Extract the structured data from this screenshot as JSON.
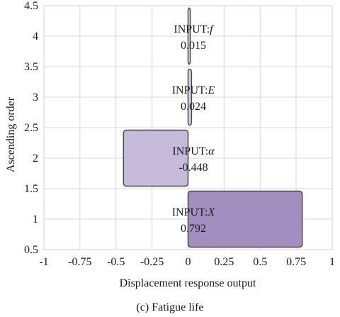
{
  "chart_data": {
    "type": "bar",
    "orientation": "horizontal",
    "xlabel": "Displacement response output",
    "ylabel": "Ascending order",
    "caption": "(c) Fatigue life",
    "xlim": [
      -1,
      1
    ],
    "ylim": [
      0.5,
      4.5
    ],
    "x_ticks": [
      "-1",
      "-0.75",
      "-0.5",
      "-0.25",
      "0",
      "0.25",
      "0.5",
      "0.75",
      "1"
    ],
    "y_ticks": [
      "0.5",
      "1",
      "1.5",
      "2",
      "2.5",
      "3",
      "3.5",
      "4",
      "4.5"
    ],
    "grid": true,
    "bars": [
      {
        "label_prefix": "INPUT:",
        "symbol": "X",
        "value_text": "0.792",
        "value": 0.792,
        "rank": 1,
        "color": "#a38fbf"
      },
      {
        "label_prefix": "INPUT:",
        "symbol": "α",
        "value_text": "-0.448",
        "value": -0.448,
        "rank": 2,
        "color": "#c7bbdb"
      },
      {
        "label_prefix": "INPUT:",
        "symbol": "E",
        "value_text": "0.024",
        "value": 0.024,
        "rank": 3,
        "color": "#d9d1e7"
      },
      {
        "label_prefix": "INPUT:",
        "symbol": "f",
        "value_text": "0.015",
        "value": 0.015,
        "rank": 4,
        "color": "#e3ddef"
      }
    ]
  }
}
